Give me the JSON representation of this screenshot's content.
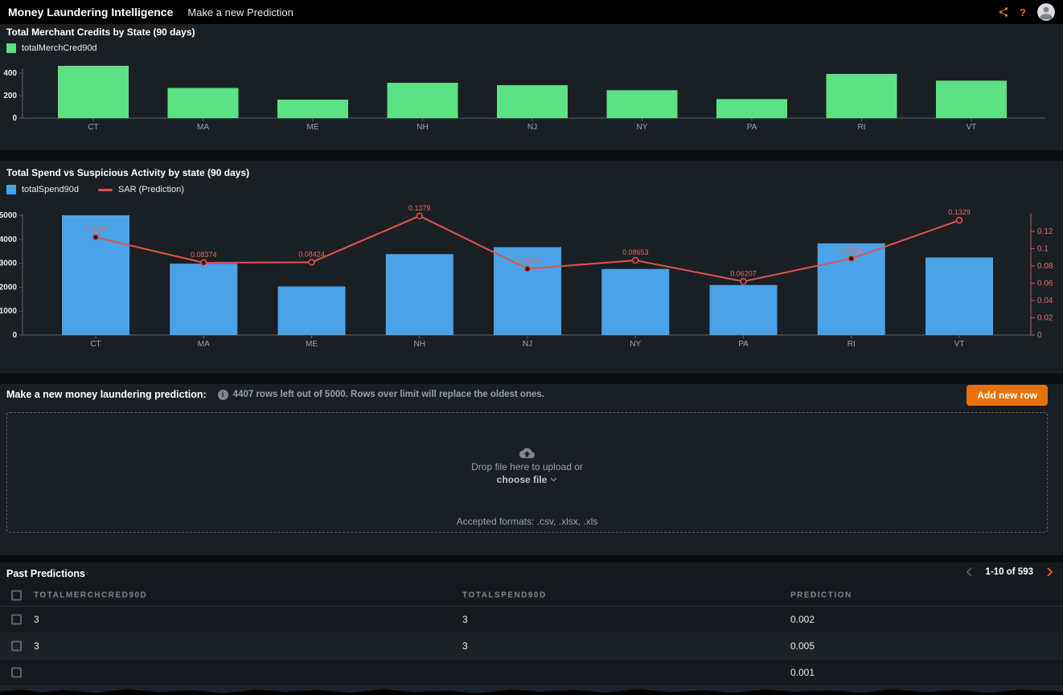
{
  "topbar": {
    "title": "Money Laundering Intelligence",
    "nav_link": "Make a new Prediction",
    "help_glyph": "?"
  },
  "chart_data": [
    {
      "type": "bar",
      "title": "Total Merchant Credits by State (90 days)",
      "categories": [
        "CT",
        "MA",
        "ME",
        "NH",
        "NJ",
        "NY",
        "PA",
        "RI",
        "VT"
      ],
      "series": [
        {
          "name": "totalMerchCred90d",
          "color": "#5ce184",
          "values": [
            465,
            268,
            164,
            314,
            293,
            248,
            169,
            393,
            333
          ]
        }
      ],
      "ylim": [
        0,
        500
      ],
      "yticks": [
        0,
        200,
        400
      ],
      "legend_position": "top-left",
      "grid": false
    },
    {
      "type": "bar+line",
      "title": "Total Spend vs Suspicious Activity by state (90 days)",
      "categories": [
        "CT",
        "MA",
        "ME",
        "NH",
        "NJ",
        "NY",
        "PA",
        "RI",
        "VT"
      ],
      "bar_series": {
        "name": "totalSpend90d",
        "color": "#4aa3e7",
        "values": [
          5000,
          2980,
          2030,
          3380,
          3670,
          2760,
          2090,
          3830,
          3240
        ]
      },
      "line_series": {
        "name": "SAR (Prediction)",
        "color": "#e0524d",
        "label_color": "#e36c65",
        "values": [
          0.1132,
          0.08374,
          0.08424,
          0.1379,
          0.07669,
          0.08653,
          0.06207,
          0.08857,
          0.1329
        ],
        "labels": [
          "0.1132",
          "0.08374",
          "0.08424",
          "0.1379",
          "0.07669",
          "0.08653",
          "0.06207",
          "0.08857",
          "0.1329"
        ]
      },
      "ylim_left": [
        0,
        5000
      ],
      "yticks_left": [
        0,
        1000,
        2000,
        3000,
        4000,
        5000
      ],
      "ylim_right": [
        0,
        0.13
      ],
      "yticks_right": [
        0,
        0.02,
        0.04,
        0.06,
        0.08,
        0.1,
        0.12
      ],
      "ytick_right_labels": [
        "0",
        "0.02",
        "0.04",
        "0.06",
        "0.08",
        "0.1",
        "0.12"
      ],
      "legend_position": "top-left",
      "grid": false
    }
  ],
  "prediction": {
    "heading": "Make a new money laundering prediction:",
    "info_glyph": "i",
    "info_text": "4407 rows left out of 5000. Rows over limit will replace the oldest ones.",
    "add_button": "Add new row",
    "accent_color": "#e8710a"
  },
  "dropzone": {
    "line1": "Drop file here to upload or",
    "choose_label": "choose file",
    "formats": "Accepted formats: .csv, .xlsx, .xls"
  },
  "past": {
    "heading": "Past Predictions",
    "pagination": {
      "range": "1-10 of 593"
    },
    "columns": [
      "TOTALMERCHCRED90D",
      "TOTALSPEND90D",
      "PREDICTION"
    ],
    "rows": [
      {
        "totalMerchCred90d": "3",
        "totalSpend90d": "3",
        "prediction": "0.002"
      },
      {
        "totalMerchCred90d": "3",
        "totalSpend90d": "3",
        "prediction": "0.005"
      },
      {
        "totalMerchCred90d": "",
        "totalSpend90d": "",
        "prediction": "0.001"
      },
      {
        "totalMerchCred90d": "",
        "totalSpend90d": "",
        "prediction": ""
      }
    ]
  }
}
